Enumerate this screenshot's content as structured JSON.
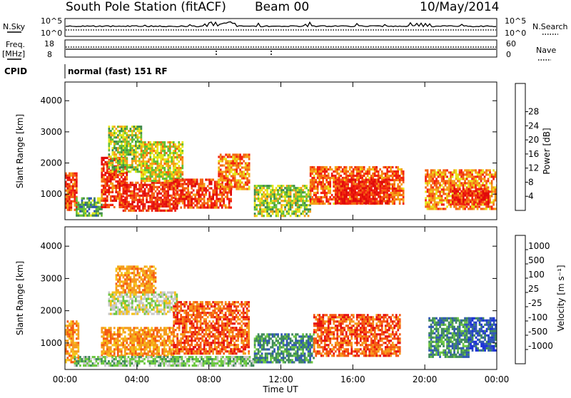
{
  "header": {
    "station": "South Pole Station (fitACF)",
    "beam": "Beam 00",
    "date": "10/May/2014"
  },
  "param_panels": {
    "nsky_label": "N.Sky",
    "nsky_scale": [
      "10^5",
      "10^0"
    ],
    "nsearch_label": "N.Search",
    "freq_label": "Freq.",
    "freq_units": "[MHz]",
    "freq_scale": [
      "18",
      "8"
    ],
    "nave_label": "Nave",
    "nave_scale": [
      "60",
      "0"
    ],
    "cpid_label": "CPID",
    "cpid_value": "normal (fast) 151 RF"
  },
  "colors": {
    "power": [
      "#0a1de8",
      "#2a4fb4",
      "#3f8a4c",
      "#63c034",
      "#e6e61a",
      "#f5a018",
      "#f46412",
      "#f22010",
      "#e00a0a"
    ],
    "velocity": [
      "#e60f0f",
      "#f55a12",
      "#f59a1c",
      "#f5c21a",
      "#c8c8c8",
      "#6cc840",
      "#3f8a5a",
      "#2f55b4",
      "#1a2fd8"
    ]
  },
  "chart_data": [
    {
      "type": "heatmap",
      "panel": "power",
      "ylabel": "Slant Range [km]",
      "ylim": [
        180,
        4600
      ],
      "xlim": [
        0,
        24
      ],
      "yticks": [
        "1000",
        "2000",
        "3000",
        "4000"
      ],
      "colorbar": {
        "label": "Power [dB]",
        "ticks": [
          "4",
          "8",
          "12",
          "16",
          "20",
          "24",
          "28"
        ],
        "range": [
          0,
          32
        ]
      },
      "regions": [
        {
          "t0": 0.0,
          "t1": 0.6,
          "r0": 500,
          "r1": 1700,
          "v": 26
        },
        {
          "t0": 0.6,
          "t1": 2.0,
          "r0": 300,
          "r1": 900,
          "v": 10
        },
        {
          "t0": 2.0,
          "t1": 3.4,
          "r0": 600,
          "r1": 2200,
          "v": 27
        },
        {
          "t0": 2.4,
          "t1": 4.2,
          "r0": 1700,
          "r1": 3200,
          "v": 14
        },
        {
          "t0": 3.2,
          "t1": 6.2,
          "r0": 500,
          "r1": 1400,
          "v": 28
        },
        {
          "t0": 4.2,
          "t1": 6.5,
          "r0": 1400,
          "r1": 2700,
          "v": 17
        },
        {
          "t0": 6.0,
          "t1": 9.2,
          "r0": 600,
          "r1": 1500,
          "v": 27
        },
        {
          "t0": 8.5,
          "t1": 10.2,
          "r0": 1200,
          "r1": 2300,
          "v": 22
        },
        {
          "t0": 10.5,
          "t1": 13.6,
          "r0": 300,
          "r1": 1300,
          "v": 14
        },
        {
          "t0": 13.6,
          "t1": 18.8,
          "r0": 700,
          "r1": 1900,
          "v": 24
        },
        {
          "t0": 15.0,
          "t1": 18.0,
          "r0": 700,
          "r1": 1500,
          "v": 29
        },
        {
          "t0": 20.0,
          "t1": 24.0,
          "r0": 500,
          "r1": 1800,
          "v": 22
        },
        {
          "t0": 21.5,
          "t1": 23.5,
          "r0": 700,
          "r1": 1200,
          "v": 28
        }
      ]
    },
    {
      "type": "heatmap",
      "panel": "velocity",
      "xlabel": "Time UT",
      "ylabel": "Slant Range [km]",
      "ylim": [
        180,
        4600
      ],
      "xlim": [
        0,
        24
      ],
      "xticks": [
        "00:00",
        "04:00",
        "08:00",
        "12:00",
        "16:00",
        "20:00",
        "00:00"
      ],
      "yticks": [
        "1000",
        "2000",
        "3000",
        "4000"
      ],
      "colorbar": {
        "label": "Velocity [m s⁻¹]",
        "ticks": [
          "1000",
          "500",
          "100",
          "25",
          "-25",
          "-100",
          "-500",
          "-1000"
        ]
      },
      "regions": [
        {
          "t0": 0.0,
          "t1": 0.7,
          "r0": 400,
          "r1": 1700,
          "v": 2
        },
        {
          "t0": 2.0,
          "t1": 6.0,
          "r0": 600,
          "r1": 1500,
          "v": 2
        },
        {
          "t0": 2.4,
          "t1": 6.2,
          "r0": 1900,
          "r1": 2600,
          "v": 4
        },
        {
          "t0": 2.8,
          "t1": 5.0,
          "r0": 2600,
          "r1": 3400,
          "v": 2
        },
        {
          "t0": 6.0,
          "t1": 10.2,
          "r0": 700,
          "r1": 2300,
          "v": 1
        },
        {
          "t0": 0.5,
          "t1": 10.5,
          "r0": 300,
          "r1": 600,
          "v": 5
        },
        {
          "t0": 10.5,
          "t1": 13.8,
          "r0": 400,
          "r1": 1300,
          "v": 6
        },
        {
          "t0": 13.8,
          "t1": 18.6,
          "r0": 600,
          "r1": 1900,
          "v": 1
        },
        {
          "t0": 20.2,
          "t1": 22.4,
          "r0": 600,
          "r1": 1800,
          "v": 6
        },
        {
          "t0": 22.4,
          "t1": 24.0,
          "r0": 800,
          "r1": 1800,
          "v": 7
        }
      ]
    }
  ]
}
